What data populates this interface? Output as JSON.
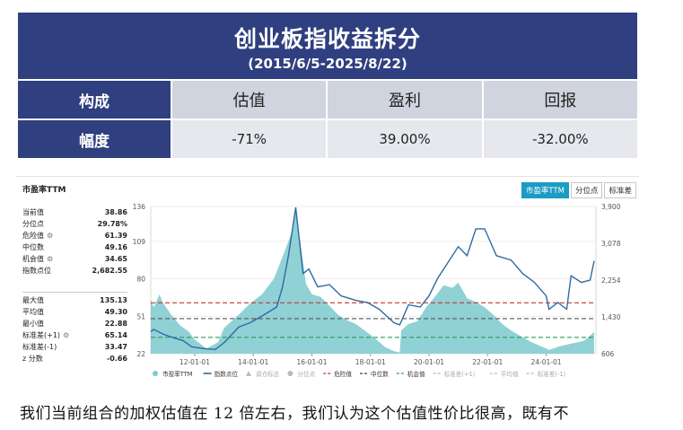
{
  "table": {
    "title": "创业板指收益拆分",
    "subtitle": "(2015/6/5-2025/8/22)",
    "row_headers": [
      "构成",
      "幅度"
    ],
    "columns": [
      "估值",
      "盈利",
      "回报"
    ],
    "values": [
      "-71%",
      "39.00%",
      "-32.00%"
    ]
  },
  "chart_panel": {
    "title": "市盈率TTM",
    "buttons": [
      "市盈率TTM",
      "分位点",
      "标准差"
    ],
    "stats_top": [
      {
        "label": "当前值",
        "value": "38.86"
      },
      {
        "label": "分位点",
        "value": "29.78%"
      },
      {
        "label": "危险值",
        "value": "61.39",
        "icon": "gear-icon"
      },
      {
        "label": "中位数",
        "value": "49.16"
      },
      {
        "label": "机会值",
        "value": "34.65",
        "icon": "gear-icon"
      },
      {
        "label": "指数点位",
        "value": "2,682.55"
      }
    ],
    "stats_bottom": [
      {
        "label": "最大值",
        "value": "135.13"
      },
      {
        "label": "平均值",
        "value": "49.30"
      },
      {
        "label": "最小值",
        "value": "22.88"
      },
      {
        "label": "标准差(+1)",
        "value": "65.14",
        "icon": "gear-icon"
      },
      {
        "label": "标准差(-1)",
        "value": "33.47"
      },
      {
        "label": "z 分数",
        "value": "-0.66"
      }
    ],
    "legend": [
      {
        "label": "市盈率TTM",
        "color": "#7cc9cf",
        "marker": "dot"
      },
      {
        "label": "指数点位",
        "color": "#2f6aa0",
        "marker": "line"
      },
      {
        "label": "调仓标志",
        "color": "#bbbbbb",
        "marker": "triangle"
      },
      {
        "label": "分位点",
        "color": "#bbbbbb",
        "marker": "dot"
      },
      {
        "label": "危险值",
        "color": "#c0392b",
        "marker": "dash"
      },
      {
        "label": "中位数",
        "color": "#444444",
        "marker": "dash"
      },
      {
        "label": "机会值",
        "color": "#27a05a",
        "marker": "dash"
      },
      {
        "label": "标准差(+1)",
        "color": "#bbbbbb",
        "marker": "dash"
      },
      {
        "label": "平均值",
        "color": "#bbbbbb",
        "marker": "dash"
      },
      {
        "label": "标准差(-1)",
        "color": "#bbbbbb",
        "marker": "dash"
      }
    ]
  },
  "chart_data": {
    "type": "area",
    "x_ticks": [
      "12-01-01",
      "14-01-01",
      "16-01-01",
      "18-01-01",
      "20-01-01",
      "22-01-01",
      "24-01-01"
    ],
    "x_range": [
      2010.5,
      2025.7
    ],
    "y_left": {
      "ticks": [
        "22",
        "51",
        "80",
        "109",
        "136"
      ],
      "range": [
        22,
        136
      ]
    },
    "y_right": {
      "ticks": [
        "606",
        "1,430",
        "2,254",
        "3,078",
        "3,900"
      ],
      "range": [
        606,
        3900
      ]
    },
    "reference_lines": [
      {
        "name": "危险值",
        "value": 61.39,
        "color": "#c0392b"
      },
      {
        "name": "中位数",
        "value": 49.16,
        "color": "#555555"
      },
      {
        "name": "机会值",
        "value": 34.65,
        "color": "#27a05a"
      }
    ],
    "series": [
      {
        "name": "市盈率TTM",
        "axis": "left",
        "color": "#7cc9cf",
        "x": [
          2010.5,
          2010.6,
          2010.8,
          2010.9,
          2011.2,
          2011.5,
          2011.8,
          2012.0,
          2012.4,
          2012.8,
          2013.0,
          2013.5,
          2013.9,
          2014.3,
          2014.7,
          2015.0,
          2015.3,
          2015.45,
          2015.8,
          2016.0,
          2016.3,
          2016.6,
          2016.9,
          2017.2,
          2017.5,
          2017.8,
          2018.1,
          2018.5,
          2018.8,
          2019.0,
          2019.05,
          2019.3,
          2019.6,
          2019.9,
          2020.2,
          2020.5,
          2020.8,
          2021.0,
          2021.3,
          2021.6,
          2021.9,
          2022.2,
          2022.5,
          2022.8,
          2023.1,
          2023.5,
          2023.9,
          2024.1,
          2024.5,
          2024.9,
          2025.3,
          2025.64
        ],
        "values": [
          64,
          58,
          68,
          62,
          52,
          44,
          39,
          33,
          26,
          31,
          42,
          52,
          61,
          68,
          80,
          97,
          115,
          134,
          76,
          68,
          66,
          59,
          52,
          48,
          45,
          40,
          35,
          27,
          24,
          23,
          40,
          45,
          47,
          58,
          66,
          75,
          73,
          77,
          65,
          62,
          58,
          52,
          45,
          40,
          36,
          31,
          27,
          25,
          28,
          30,
          32,
          38.86
        ]
      },
      {
        "name": "指数点位",
        "axis": "right",
        "color": "#2f6aa0",
        "x": [
          2010.5,
          2010.6,
          2010.9,
          2011.2,
          2011.6,
          2011.9,
          2012.3,
          2012.7,
          2013.0,
          2013.5,
          2013.9,
          2014.3,
          2014.8,
          2015.0,
          2015.2,
          2015.45,
          2015.7,
          2015.9,
          2016.2,
          2016.6,
          2017.0,
          2017.5,
          2017.9,
          2018.3,
          2018.8,
          2019.0,
          2019.3,
          2019.7,
          2020.0,
          2020.3,
          2020.6,
          2021.0,
          2021.3,
          2021.6,
          2021.9,
          2022.3,
          2022.8,
          2023.2,
          2023.6,
          2024.0,
          2024.1,
          2024.4,
          2024.7,
          2024.85,
          2025.2,
          2025.5,
          2025.64
        ],
        "values": [
          1100,
          1150,
          1050,
          980,
          900,
          760,
          720,
          700,
          850,
          1200,
          1300,
          1450,
          1650,
          2100,
          2800,
          3880,
          2400,
          2500,
          2100,
          2150,
          1900,
          1800,
          1750,
          1600,
          1300,
          1250,
          1700,
          1650,
          1900,
          2300,
          2600,
          3000,
          2800,
          3400,
          3400,
          2800,
          2700,
          2400,
          2200,
          1900,
          1600,
          1750,
          1600,
          2350,
          2200,
          2250,
          2682.55
        ]
      }
    ]
  },
  "footer_text": "我们当前组合的加权估值在 12 倍左右，我们认为这个估值性价比很高，既有不"
}
